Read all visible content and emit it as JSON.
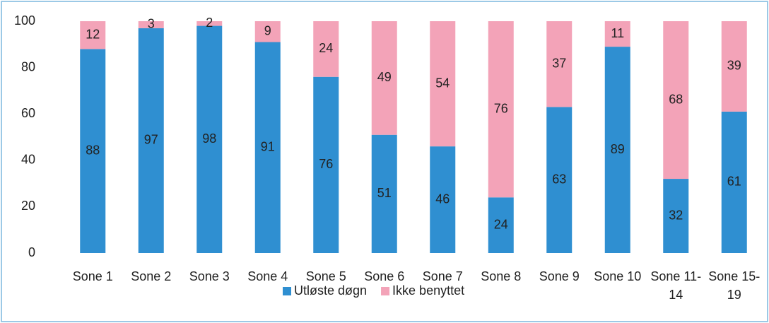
{
  "chart_data": {
    "type": "stacked_bar",
    "categories": [
      "Sone 1",
      "Sone 2",
      "Sone 3",
      "Sone 4",
      "Sone 5",
      "Sone 6",
      "Sone 7",
      "Sone 8",
      "Sone 9",
      "Sone 10",
      "Sone 11-14",
      "Sone 15-19"
    ],
    "series": [
      {
        "name": "Utløste døgn",
        "color": "#2f8fd1",
        "values": [
          88,
          97,
          98,
          91,
          76,
          51,
          46,
          24,
          63,
          89,
          32,
          61
        ]
      },
      {
        "name": "Ikke benyttet",
        "color": "#f3a3b8",
        "values": [
          12,
          3,
          2,
          9,
          24,
          49,
          54,
          76,
          37,
          11,
          68,
          39
        ]
      }
    ],
    "ylim": [
      0,
      100
    ],
    "yticks": [
      0,
      20,
      40,
      60,
      80,
      100
    ],
    "legend": "bottom"
  }
}
